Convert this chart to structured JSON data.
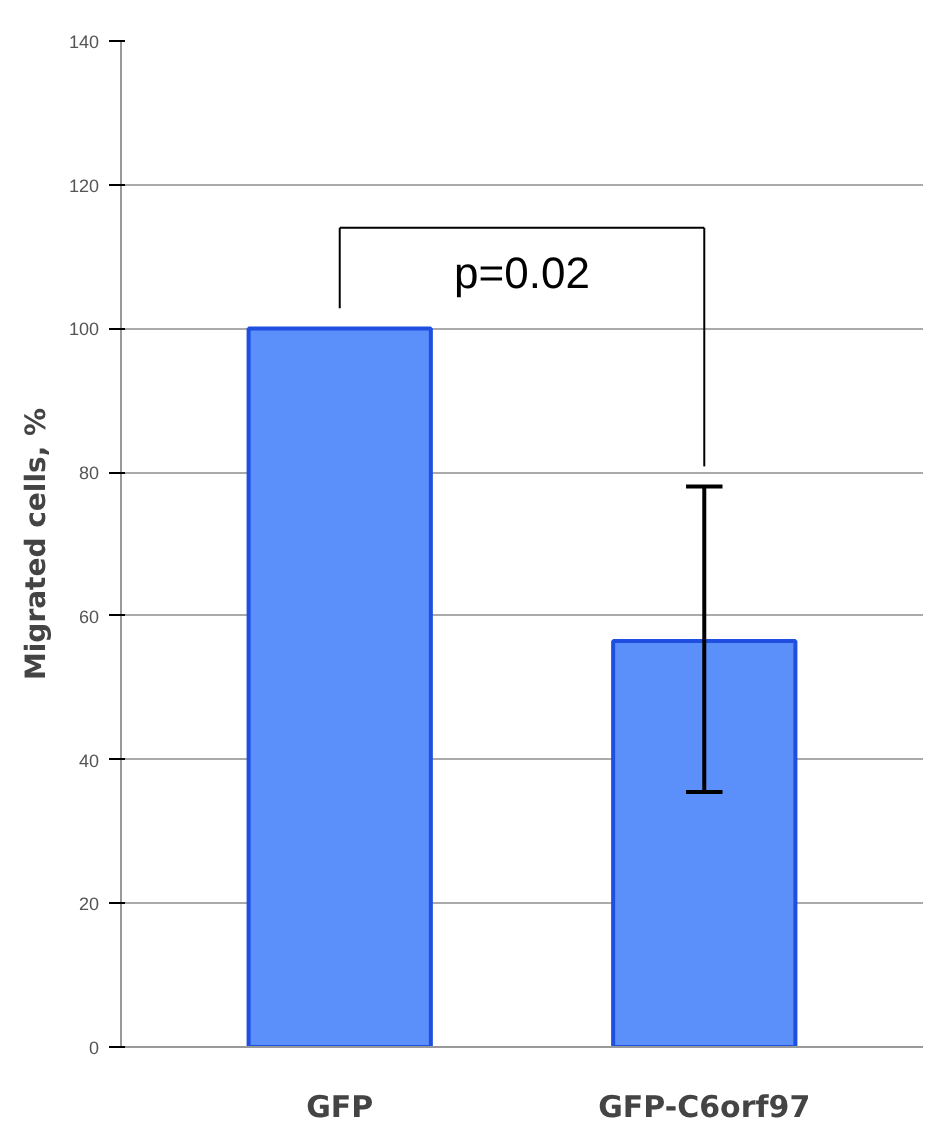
{
  "chart_data": {
    "type": "bar",
    "ylabel": "Migrated cells, %",
    "categories": [
      "GFP",
      "GFP-C6orf97"
    ],
    "values": [
      100,
      56.5
    ],
    "errors": [
      0,
      [
        35.5,
        78
      ]
    ],
    "color": "#5b8ff9",
    "ylim": [
      0,
      140
    ],
    "yticks": [
      0,
      20,
      40,
      60,
      80,
      100,
      120,
      140
    ],
    "grid": "y",
    "annotations": [
      "p=0.02"
    ]
  }
}
